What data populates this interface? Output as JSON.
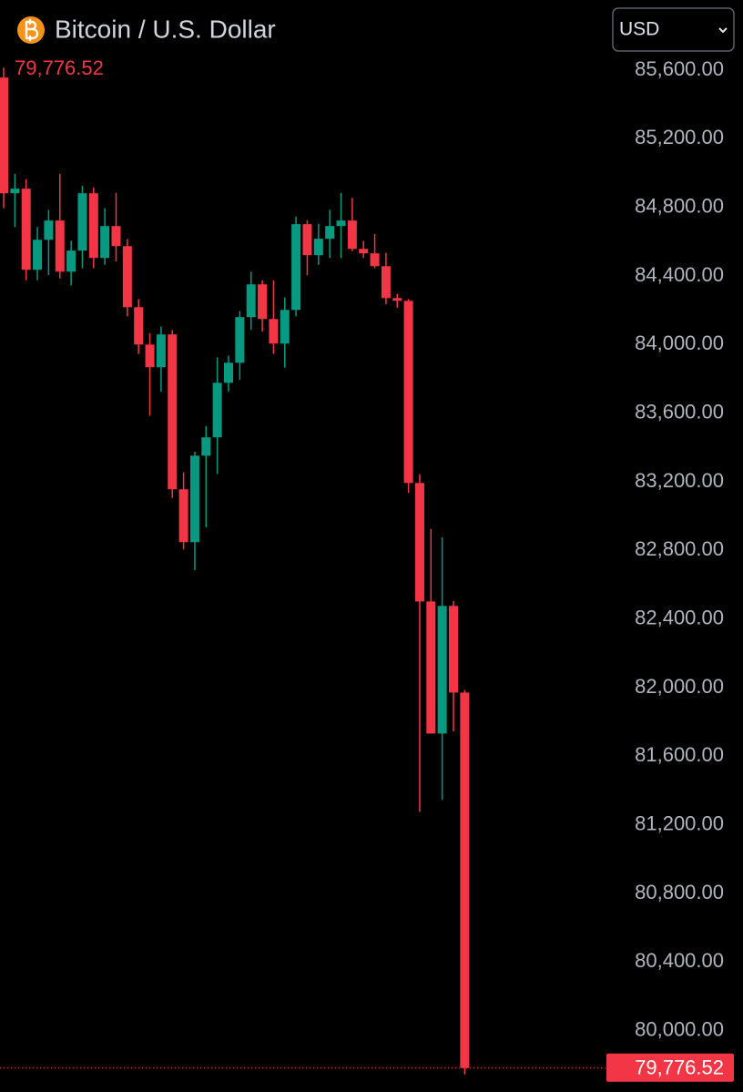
{
  "chart_data": {
    "type": "candlestick",
    "title": "Bitcoin / U.S. Dollar",
    "currency": "USD",
    "last_price": {
      "value": 79776.52,
      "label": "79,776.52"
    },
    "up_color": "#089981",
    "down_color": "#f23645",
    "ylim": [
      79637,
      86004
    ],
    "yticks": [
      {
        "value": 85600,
        "label": "85,600.00"
      },
      {
        "value": 85200,
        "label": "85,200.00"
      },
      {
        "value": 84800,
        "label": "84,800.00"
      },
      {
        "value": 84400,
        "label": "84,400.00"
      },
      {
        "value": 84000,
        "label": "84,000.00"
      },
      {
        "value": 83600,
        "label": "83,600.00"
      },
      {
        "value": 83200,
        "label": "83,200.00"
      },
      {
        "value": 82800,
        "label": "82,800.00"
      },
      {
        "value": 82400,
        "label": "82,400.00"
      },
      {
        "value": 82000,
        "label": "82,000.00"
      },
      {
        "value": 81600,
        "label": "81,600.00"
      },
      {
        "value": 81200,
        "label": "81,200.00"
      },
      {
        "value": 80800,
        "label": "80,800.00"
      },
      {
        "value": 80400,
        "label": "80,400.00"
      },
      {
        "value": 80000,
        "label": "80,000.00"
      }
    ],
    "open": [
      85552,
      84877,
      84904,
      84431,
      84606,
      84718,
      84420,
      84543,
      84877,
      84500,
      84686,
      84569,
      84213,
      83995,
      83863,
      84054,
      83151,
      82843,
      83347,
      83454,
      83772,
      83889,
      84155,
      84346,
      84144,
      84001,
      84197,
      84697,
      84516,
      84612,
      84686,
      84718,
      84553,
      84527,
      84452,
      84266,
      84250,
      83188,
      82497,
      81727,
      82471,
      81966
    ],
    "high": [
      85610,
      84990,
      84960,
      84680,
      84780,
      84990,
      84600,
      84920,
      84910,
      84790,
      84880,
      84610,
      84260,
      84060,
      84100,
      84080,
      83250,
      83370,
      83520,
      83920,
      83930,
      84190,
      84420,
      84370,
      84370,
      84270,
      84740,
      84720,
      84700,
      84780,
      84880,
      84850,
      84600,
      84640,
      84530,
      84290,
      84260,
      83240,
      82920,
      82870,
      82500,
      81980
    ],
    "low": [
      84790,
      84680,
      84370,
      84370,
      84400,
      84380,
      84340,
      84440,
      84440,
      84460,
      84480,
      84160,
      83940,
      83580,
      83720,
      83100,
      82800,
      82680,
      82930,
      83240,
      83720,
      83790,
      84080,
      84070,
      83940,
      83860,
      84160,
      84400,
      84460,
      84500,
      84500,
      84540,
      84500,
      84440,
      84230,
      84210,
      83130,
      81270,
      81730,
      81340,
      81740,
      79740
    ],
    "close": [
      84877,
      84904,
      84431,
      84606,
      84718,
      84420,
      84543,
      84877,
      84500,
      84686,
      84569,
      84213,
      83995,
      83863,
      84054,
      83151,
      82843,
      83347,
      83454,
      83772,
      83889,
      84155,
      84346,
      84144,
      84001,
      84197,
      84697,
      84516,
      84612,
      84686,
      84718,
      84553,
      84527,
      84452,
      84266,
      84250,
      83188,
      82497,
      81727,
      82471,
      81966,
      79776.52
    ]
  }
}
